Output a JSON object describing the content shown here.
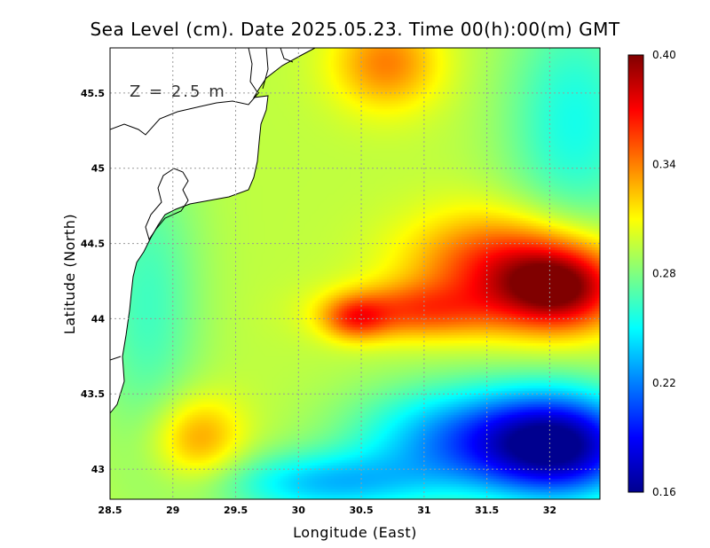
{
  "title": "Sea Level (cm). Date 2025.05.23. Time 00(h):00(m) GMT",
  "depth_label": "Z = 2.5 m",
  "chart_data": {
    "type": "heatmap",
    "title": "Sea Level (cm). Date 2025.05.23. Time 00(h):00(m) GMT",
    "xlabel": "Longitude (East)",
    "ylabel": "Latitude (North)",
    "xlim": [
      28.5,
      32.4
    ],
    "ylim": [
      42.8,
      45.8
    ],
    "xticks": [
      28.5,
      29,
      29.5,
      30,
      30.5,
      31,
      31.5,
      32
    ],
    "xtick_labels": [
      "28.5",
      "29",
      "29.5",
      "30",
      "30.5",
      "31",
      "31.5",
      "32"
    ],
    "yticks": [
      43,
      43.5,
      44,
      44.5,
      45,
      45.5
    ],
    "ytick_labels": [
      "43",
      "43.5",
      "44",
      "44.5",
      "45",
      "45.5"
    ],
    "grid": true,
    "colorbar": {
      "min": 0.16,
      "max": 0.4,
      "ticks": [
        0.16,
        0.22,
        0.28,
        0.34,
        0.4
      ],
      "tick_labels": [
        "0.16",
        "0.22",
        "0.28",
        "0.34",
        "0.40"
      ],
      "colormap": "jet"
    },
    "base_value": 0.295,
    "features": [
      {
        "name": "eastern high",
        "lon": 32.1,
        "lat": 44.2,
        "value": 0.39
      },
      {
        "name": "eastern high ridge",
        "lon": 31.6,
        "lat": 44.35,
        "value": 0.36
      },
      {
        "name": "central high tongue",
        "lon": 30.9,
        "lat": 44.05,
        "value": 0.345
      },
      {
        "name": "western tongue tip",
        "lon": 30.45,
        "lat": 44.0,
        "value": 0.34
      },
      {
        "name": "northern high",
        "lon": 30.7,
        "lat": 45.7,
        "value": 0.34
      },
      {
        "name": "southwestern high",
        "lon": 29.2,
        "lat": 43.2,
        "value": 0.335
      },
      {
        "name": "southeastern low",
        "lon": 32.1,
        "lat": 43.15,
        "value": 0.175
      },
      {
        "name": "southern low band",
        "lon": 31.3,
        "lat": 43.2,
        "value": 0.225
      },
      {
        "name": "southern central low",
        "lon": 30.2,
        "lat": 42.9,
        "value": 0.24
      },
      {
        "name": "northeastern low",
        "lon": 32.2,
        "lat": 45.3,
        "value": 0.255
      },
      {
        "name": "western coastal low",
        "lon": 28.8,
        "lat": 44.1,
        "value": 0.265
      }
    ]
  }
}
